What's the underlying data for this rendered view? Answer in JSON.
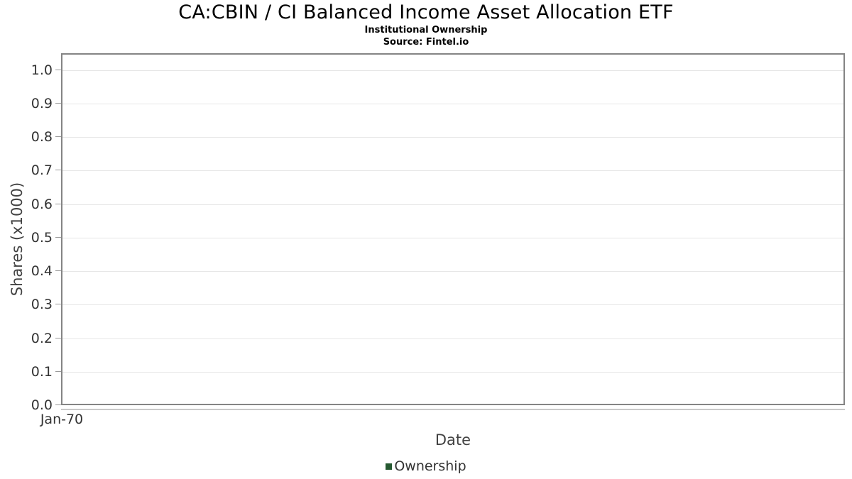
{
  "chart_data": {
    "type": "line",
    "title": "CA:CBIN / CI Balanced Income Asset Allocation ETF",
    "subtitle": "Institutional Ownership",
    "source": "Source: Fintel.io",
    "xlabel": "Date",
    "ylabel": "Shares (x1000)",
    "x_ticks": [
      "Jan-70"
    ],
    "y_ticks": [
      "0.0",
      "0.1",
      "0.2",
      "0.3",
      "0.4",
      "0.5",
      "0.6",
      "0.7",
      "0.8",
      "0.9",
      "1.0"
    ],
    "ylim": [
      0,
      1.05
    ],
    "grid": true,
    "legend_position": "bottom-center",
    "series": [
      {
        "name": "Ownership",
        "color": "#265931",
        "x": [],
        "values": []
      }
    ],
    "colors": {
      "plot_border": "#848484",
      "gridline": "#e6e6e6",
      "axis_line": "#c9c9c9",
      "tick_text": "#333333",
      "axis_title_text": "#424242",
      "title_text": "#000000"
    }
  }
}
